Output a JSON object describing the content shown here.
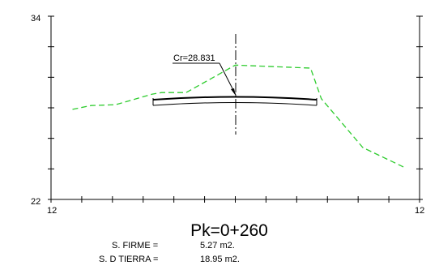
{
  "section": {
    "y_top_label": "34",
    "y_bottom_label": "22",
    "x_left_label": "12",
    "x_right_label": "12",
    "callout_label": "Cr=28.831",
    "pk_title": "Pk=0+260",
    "firme_label": "S. FIRME =",
    "firme_value": "5.27  m2.",
    "tierra_label": "S. D TIERRA =",
    "tierra_value": "18.95  m2."
  },
  "colors": {
    "terrain_line": "#2ecc2e",
    "lines": "#000000",
    "background": "#ffffff"
  },
  "chart_data": {
    "type": "line",
    "title": "Pk=0+260",
    "xlim": [
      -12,
      12
    ],
    "ylim": [
      22,
      34
    ],
    "series": [
      {
        "style": "dashed",
        "x": [
          -10.6,
          -9.4,
          -7.8,
          -5.4,
          -4.8,
          -3.2,
          0.0,
          4.9,
          5.6,
          8.3,
          11.0
        ],
        "y": [
          27.9,
          28.15,
          28.2,
          28.9,
          29.0,
          29.0,
          30.8,
          30.6,
          28.6,
          25.4,
          24.1
        ]
      }
    ]
  }
}
